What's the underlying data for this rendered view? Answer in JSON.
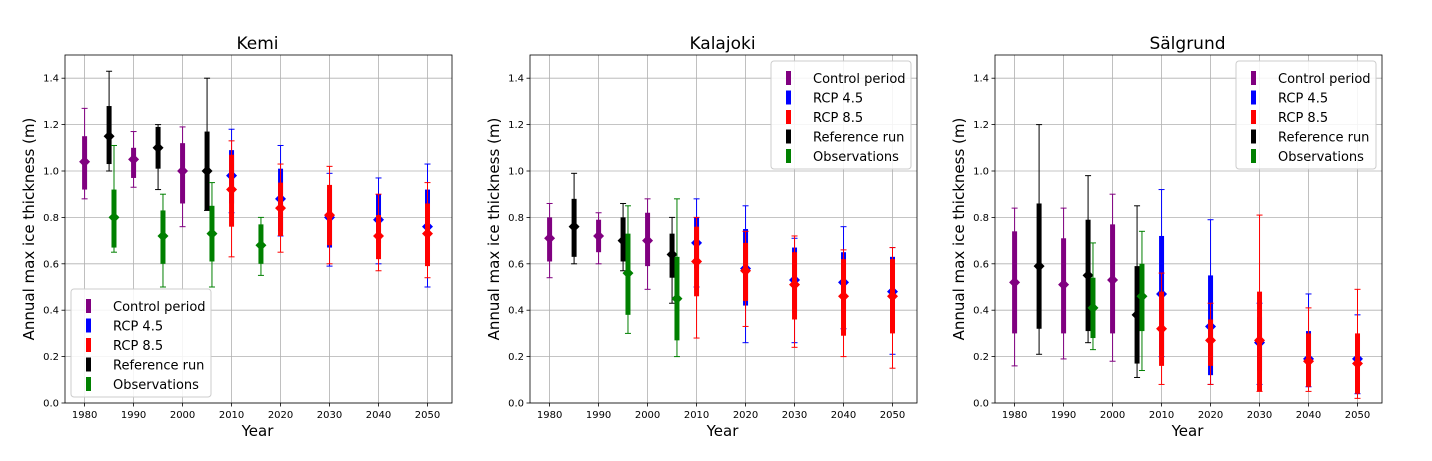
{
  "chart_data": [
    {
      "type": "errorbar",
      "title": "Kemi",
      "xlabel": "Year",
      "ylabel": "Annual max ice thickness (m)",
      "xlim": [
        1976,
        2055
      ],
      "ylim": [
        0,
        1.5
      ],
      "xticks": [
        1980,
        1990,
        2000,
        2010,
        2020,
        2030,
        2040,
        2050
      ],
      "yticks": [
        0.0,
        0.2,
        0.4,
        0.6,
        0.8,
        1.0,
        1.2,
        1.4
      ],
      "grid": true,
      "legend_position": "lower-left",
      "series": [
        {
          "name": "Control period",
          "color": "#800080",
          "points": [
            {
              "x": 1980,
              "mean": 1.04,
              "q_low": 0.92,
              "q_high": 1.15,
              "min": 0.88,
              "max": 1.27
            },
            {
              "x": 1990,
              "mean": 1.05,
              "q_low": 0.97,
              "q_high": 1.1,
              "min": 0.93,
              "max": 1.17
            },
            {
              "x": 2000,
              "mean": 1.0,
              "q_low": 0.86,
              "q_high": 1.12,
              "min": 0.76,
              "max": 1.19
            }
          ]
        },
        {
          "name": "RCP 4.5",
          "color": "#0000ff",
          "points": [
            {
              "x": 2010,
              "mean": 0.98,
              "q_low": 0.86,
              "q_high": 1.09,
              "min": 0.82,
              "max": 1.18
            },
            {
              "x": 2020,
              "mean": 0.88,
              "q_low": 0.74,
              "q_high": 1.01,
              "min": 0.72,
              "max": 1.11
            },
            {
              "x": 2030,
              "mean": 0.8,
              "q_low": 0.67,
              "q_high": 0.92,
              "min": 0.59,
              "max": 0.99
            },
            {
              "x": 2040,
              "mean": 0.79,
              "q_low": 0.69,
              "q_high": 0.9,
              "min": 0.6,
              "max": 0.97
            },
            {
              "x": 2050,
              "mean": 0.76,
              "q_low": 0.6,
              "q_high": 0.92,
              "min": 0.5,
              "max": 1.03
            }
          ]
        },
        {
          "name": "RCP 8.5",
          "color": "#ff0000",
          "points": [
            {
              "x": 2010,
              "mean": 0.92,
              "q_low": 0.76,
              "q_high": 1.07,
              "min": 0.63,
              "max": 1.13
            },
            {
              "x": 2020,
              "mean": 0.84,
              "q_low": 0.72,
              "q_high": 0.95,
              "min": 0.65,
              "max": 1.03
            },
            {
              "x": 2030,
              "mean": 0.81,
              "q_low": 0.68,
              "q_high": 0.94,
              "min": 0.6,
              "max": 1.02
            },
            {
              "x": 2040,
              "mean": 0.72,
              "q_low": 0.62,
              "q_high": 0.81,
              "min": 0.57,
              "max": 0.9
            },
            {
              "x": 2050,
              "mean": 0.73,
              "q_low": 0.59,
              "q_high": 0.86,
              "min": 0.54,
              "max": 0.95
            }
          ]
        },
        {
          "name": "Reference run",
          "color": "#000000",
          "points": [
            {
              "x": 1985,
              "mean": 1.15,
              "q_low": 1.03,
              "q_high": 1.28,
              "min": 1.0,
              "max": 1.43
            },
            {
              "x": 1995,
              "mean": 1.1,
              "q_low": 1.01,
              "q_high": 1.19,
              "min": 0.92,
              "max": 1.2
            },
            {
              "x": 2005,
              "mean": 1.0,
              "q_low": 0.83,
              "q_high": 1.17,
              "min": 0.83,
              "max": 1.4
            }
          ]
        },
        {
          "name": "Observations",
          "color": "#008000",
          "points": [
            {
              "x": 1986,
              "mean": 0.8,
              "q_low": 0.67,
              "q_high": 0.92,
              "min": 0.65,
              "max": 1.11
            },
            {
              "x": 1996,
              "mean": 0.72,
              "q_low": 0.6,
              "q_high": 0.83,
              "min": 0.5,
              "max": 0.9
            },
            {
              "x": 2006,
              "mean": 0.73,
              "q_low": 0.61,
              "q_high": 0.85,
              "min": 0.5,
              "max": 0.95
            },
            {
              "x": 2016,
              "mean": 0.68,
              "q_low": 0.6,
              "q_high": 0.77,
              "min": 0.55,
              "max": 0.8
            }
          ]
        }
      ]
    },
    {
      "type": "errorbar",
      "title": "Kalajoki",
      "xlabel": "Year",
      "ylabel": "Annual max ice thickness (m)",
      "xlim": [
        1976,
        2055
      ],
      "ylim": [
        0,
        1.5
      ],
      "xticks": [
        1980,
        1990,
        2000,
        2010,
        2020,
        2030,
        2040,
        2050
      ],
      "yticks": [
        0.0,
        0.2,
        0.4,
        0.6,
        0.8,
        1.0,
        1.2,
        1.4
      ],
      "grid": true,
      "legend_position": "upper-right",
      "series": [
        {
          "name": "Control period",
          "color": "#800080",
          "points": [
            {
              "x": 1980,
              "mean": 0.71,
              "q_low": 0.61,
              "q_high": 0.8,
              "min": 0.54,
              "max": 0.86
            },
            {
              "x": 1990,
              "mean": 0.72,
              "q_low": 0.65,
              "q_high": 0.79,
              "min": 0.6,
              "max": 0.82
            },
            {
              "x": 2000,
              "mean": 0.7,
              "q_low": 0.59,
              "q_high": 0.82,
              "min": 0.49,
              "max": 0.88
            }
          ]
        },
        {
          "name": "RCP 4.5",
          "color": "#0000ff",
          "points": [
            {
              "x": 2010,
              "mean": 0.69,
              "q_low": 0.58,
              "q_high": 0.8,
              "min": 0.5,
              "max": 0.88
            },
            {
              "x": 2020,
              "mean": 0.58,
              "q_low": 0.42,
              "q_high": 0.75,
              "min": 0.26,
              "max": 0.85
            },
            {
              "x": 2030,
              "mean": 0.53,
              "q_low": 0.39,
              "q_high": 0.67,
              "min": 0.26,
              "max": 0.71
            },
            {
              "x": 2040,
              "mean": 0.52,
              "q_low": 0.39,
              "q_high": 0.65,
              "min": 0.32,
              "max": 0.76
            },
            {
              "x": 2050,
              "mean": 0.48,
              "q_low": 0.33,
              "q_high": 0.63,
              "min": 0.21,
              "max": 0.67
            }
          ]
        },
        {
          "name": "RCP 8.5",
          "color": "#ff0000",
          "points": [
            {
              "x": 2010,
              "mean": 0.61,
              "q_low": 0.46,
              "q_high": 0.76,
              "min": 0.28,
              "max": 0.8
            },
            {
              "x": 2020,
              "mean": 0.57,
              "q_low": 0.44,
              "q_high": 0.69,
              "min": 0.33,
              "max": 0.74
            },
            {
              "x": 2030,
              "mean": 0.51,
              "q_low": 0.36,
              "q_high": 0.65,
              "min": 0.24,
              "max": 0.72
            },
            {
              "x": 2040,
              "mean": 0.46,
              "q_low": 0.29,
              "q_high": 0.62,
              "min": 0.2,
              "max": 0.66
            },
            {
              "x": 2050,
              "mean": 0.46,
              "q_low": 0.3,
              "q_high": 0.62,
              "min": 0.15,
              "max": 0.67
            }
          ]
        },
        {
          "name": "Reference run",
          "color": "#000000",
          "points": [
            {
              "x": 1985,
              "mean": 0.76,
              "q_low": 0.63,
              "q_high": 0.88,
              "min": 0.6,
              "max": 0.99
            },
            {
              "x": 1995,
              "mean": 0.7,
              "q_low": 0.61,
              "q_high": 0.8,
              "min": 0.57,
              "max": 0.86
            },
            {
              "x": 2005,
              "mean": 0.64,
              "q_low": 0.54,
              "q_high": 0.73,
              "min": 0.43,
              "max": 0.8
            }
          ]
        },
        {
          "name": "Observations",
          "color": "#008000",
          "points": [
            {
              "x": 1996,
              "mean": 0.56,
              "q_low": 0.38,
              "q_high": 0.73,
              "min": 0.3,
              "max": 0.85
            },
            {
              "x": 2006,
              "mean": 0.45,
              "q_low": 0.27,
              "q_high": 0.63,
              "min": 0.2,
              "max": 0.88
            }
          ]
        }
      ]
    },
    {
      "type": "errorbar",
      "title": "Sälgrund",
      "xlabel": "Year",
      "ylabel": "Annual max ice thickness (m)",
      "xlim": [
        1976,
        2055
      ],
      "ylim": [
        0,
        1.5
      ],
      "xticks": [
        1980,
        1990,
        2000,
        2010,
        2020,
        2030,
        2040,
        2050
      ],
      "yticks": [
        0.0,
        0.2,
        0.4,
        0.6,
        0.8,
        1.0,
        1.2,
        1.4
      ],
      "grid": true,
      "legend_position": "upper-right",
      "series": [
        {
          "name": "Control period",
          "color": "#800080",
          "points": [
            {
              "x": 1980,
              "mean": 0.52,
              "q_low": 0.3,
              "q_high": 0.74,
              "min": 0.16,
              "max": 0.84
            },
            {
              "x": 1990,
              "mean": 0.51,
              "q_low": 0.3,
              "q_high": 0.71,
              "min": 0.19,
              "max": 0.84
            },
            {
              "x": 2000,
              "mean": 0.53,
              "q_low": 0.3,
              "q_high": 0.77,
              "min": 0.18,
              "max": 0.9
            }
          ]
        },
        {
          "name": "RCP 4.5",
          "color": "#0000ff",
          "points": [
            {
              "x": 2010,
              "mean": 0.47,
              "q_low": 0.21,
              "q_high": 0.72,
              "min": 0.2,
              "max": 0.92
            },
            {
              "x": 2020,
              "mean": 0.33,
              "q_low": 0.12,
              "q_high": 0.55,
              "min": 0.08,
              "max": 0.79
            },
            {
              "x": 2030,
              "mean": 0.26,
              "q_low": 0.14,
              "q_high": 0.37,
              "min": 0.08,
              "max": 0.43
            },
            {
              "x": 2040,
              "mean": 0.19,
              "q_low": 0.08,
              "q_high": 0.31,
              "min": 0.07,
              "max": 0.47
            },
            {
              "x": 2050,
              "mean": 0.19,
              "q_low": 0.09,
              "q_high": 0.29,
              "min": 0.04,
              "max": 0.38
            }
          ]
        },
        {
          "name": "RCP 8.5",
          "color": "#ff0000",
          "points": [
            {
              "x": 2010,
              "mean": 0.32,
              "q_low": 0.16,
              "q_high": 0.48,
              "min": 0.08,
              "max": 0.56
            },
            {
              "x": 2020,
              "mean": 0.27,
              "q_low": 0.16,
              "q_high": 0.36,
              "min": 0.08,
              "max": 0.43
            },
            {
              "x": 2030,
              "mean": 0.27,
              "q_low": 0.05,
              "q_high": 0.48,
              "min": 0.05,
              "max": 0.81
            },
            {
              "x": 2040,
              "mean": 0.18,
              "q_low": 0.07,
              "q_high": 0.3,
              "min": 0.05,
              "max": 0.41
            },
            {
              "x": 2050,
              "mean": 0.17,
              "q_low": 0.04,
              "q_high": 0.3,
              "min": 0.02,
              "max": 0.49
            }
          ]
        },
        {
          "name": "Reference run",
          "color": "#000000",
          "points": [
            {
              "x": 1985,
              "mean": 0.59,
              "q_low": 0.32,
              "q_high": 0.86,
              "min": 0.21,
              "max": 1.2
            },
            {
              "x": 1995,
              "mean": 0.55,
              "q_low": 0.31,
              "q_high": 0.79,
              "min": 0.26,
              "max": 0.98
            },
            {
              "x": 2005,
              "mean": 0.38,
              "q_low": 0.17,
              "q_high": 0.59,
              "min": 0.11,
              "max": 0.85
            }
          ]
        },
        {
          "name": "Observations",
          "color": "#008000",
          "points": [
            {
              "x": 1996,
              "mean": 0.41,
              "q_low": 0.28,
              "q_high": 0.54,
              "min": 0.23,
              "max": 0.69
            },
            {
              "x": 2006,
              "mean": 0.46,
              "q_low": 0.31,
              "q_high": 0.6,
              "min": 0.14,
              "max": 0.74
            }
          ]
        }
      ]
    }
  ]
}
